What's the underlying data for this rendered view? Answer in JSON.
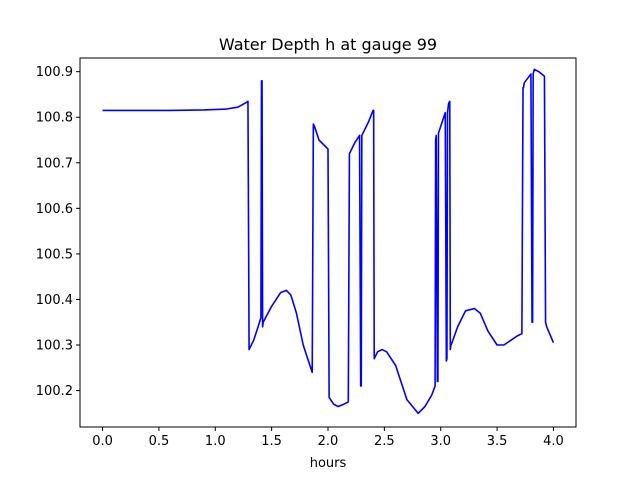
{
  "chart_data": {
    "type": "line",
    "title": "Water Depth h at gauge 99",
    "xlabel": "hours",
    "ylabel": "",
    "xlim": [
      -0.2,
      4.2
    ],
    "ylim": [
      100.12,
      100.93
    ],
    "xticks": [
      0.0,
      0.5,
      1.0,
      1.5,
      2.0,
      2.5,
      3.0,
      3.5,
      4.0
    ],
    "xtick_labels": [
      "0.0",
      "0.5",
      "1.0",
      "1.5",
      "2.0",
      "2.5",
      "3.0",
      "3.5",
      "4.0"
    ],
    "yticks": [
      100.2,
      100.3,
      100.4,
      100.5,
      100.6,
      100.7,
      100.8,
      100.9
    ],
    "ytick_labels": [
      "100.2",
      "100.3",
      "100.4",
      "100.5",
      "100.6",
      "100.7",
      "100.8",
      "100.9"
    ],
    "grid": false,
    "series": [
      {
        "color": "#0000ff",
        "x": [
          0.0,
          0.3,
          0.6,
          0.9,
          1.1,
          1.2,
          1.28,
          1.29,
          1.3,
          1.34,
          1.38,
          1.405,
          1.41,
          1.415,
          1.42,
          1.425,
          1.5,
          1.58,
          1.63,
          1.67,
          1.72,
          1.78,
          1.86,
          1.87,
          1.88,
          1.92,
          1.98,
          2.0,
          2.01,
          2.05,
          2.09,
          2.14,
          2.18,
          2.19,
          2.2,
          2.24,
          2.28,
          2.29,
          2.295,
          2.3,
          2.31,
          2.36,
          2.4,
          2.405,
          2.41,
          2.44,
          2.48,
          2.52,
          2.6,
          2.7,
          2.8,
          2.86,
          2.92,
          2.95,
          2.955,
          2.96,
          2.97,
          2.975,
          2.98,
          3.04,
          3.05,
          3.055,
          3.06,
          3.07,
          3.08,
          3.085,
          3.09,
          3.1,
          3.15,
          3.22,
          3.3,
          3.35,
          3.42,
          3.5,
          3.56,
          3.62,
          3.68,
          3.72,
          3.73,
          3.735,
          3.74,
          3.8,
          3.81,
          3.815,
          3.82,
          3.83,
          3.87,
          3.92,
          3.93,
          3.935,
          3.94,
          4.0
        ],
        "y": [
          100.815,
          100.815,
          100.815,
          100.816,
          100.818,
          100.822,
          100.833,
          100.835,
          100.29,
          100.31,
          100.34,
          100.36,
          100.88,
          100.88,
          100.34,
          100.35,
          100.385,
          100.415,
          100.42,
          100.41,
          100.37,
          100.3,
          100.24,
          100.785,
          100.78,
          100.75,
          100.735,
          100.73,
          100.185,
          100.17,
          100.165,
          100.17,
          100.175,
          100.72,
          100.725,
          100.745,
          100.76,
          100.21,
          100.21,
          100.76,
          100.765,
          100.79,
          100.815,
          100.815,
          100.27,
          100.285,
          100.29,
          100.285,
          100.255,
          100.18,
          100.15,
          100.165,
          100.19,
          100.21,
          100.75,
          100.76,
          100.22,
          100.22,
          100.765,
          100.81,
          100.265,
          100.27,
          100.81,
          100.83,
          100.835,
          100.29,
          100.3,
          100.305,
          100.34,
          100.375,
          100.38,
          100.37,
          100.33,
          100.3,
          100.3,
          100.31,
          100.32,
          100.325,
          100.865,
          100.865,
          100.875,
          100.895,
          100.35,
          100.35,
          100.895,
          100.905,
          100.9,
          100.89,
          100.35,
          100.345,
          100.34,
          100.305
        ]
      }
    ]
  }
}
